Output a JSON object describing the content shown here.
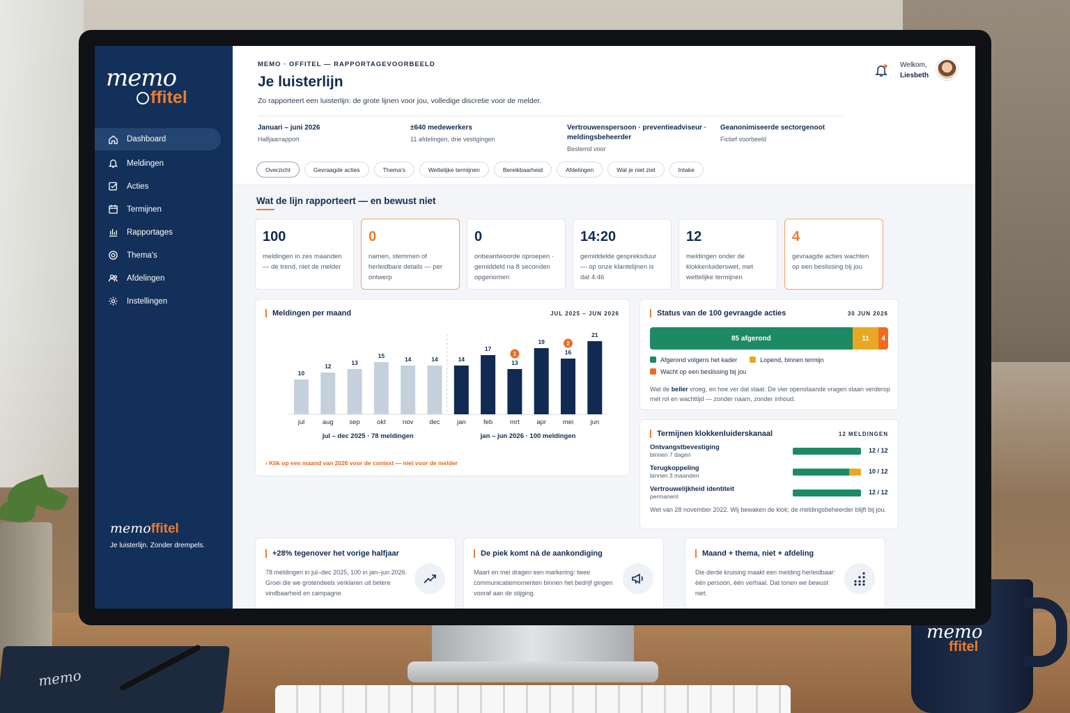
{
  "brand": {
    "logo_main": "memo",
    "logo_sub": "ffitel",
    "side_tagline": "Je luisterlijn. Zonder drempels."
  },
  "sidebar": {
    "items": [
      {
        "label": "Dashboard",
        "icon": "home-icon"
      },
      {
        "label": "Meldingen",
        "icon": "bell-icon"
      },
      {
        "label": "Acties",
        "icon": "check-square-icon"
      },
      {
        "label": "Termijnen",
        "icon": "calendar-icon"
      },
      {
        "label": "Rapportages",
        "icon": "bar-chart-icon"
      },
      {
        "label": "Thema's",
        "icon": "target-icon"
      },
      {
        "label": "Afdelingen",
        "icon": "users-icon"
      },
      {
        "label": "Instellingen",
        "icon": "gear-icon"
      }
    ]
  },
  "header": {
    "eyebrow": "MEMO · OFFITEL — RAPPORTAGEVOORBEELD",
    "title": "Je luisterlijn",
    "subtitle": "Zo rapporteert een luisterlijn: de grote lijnen voor jou, volledige discretie voor de melder.",
    "welcome_label": "Welkom,",
    "user_name": "Liesbeth",
    "meta": [
      {
        "title": "Januari – juni 2026",
        "sub": "Halfjaarrapport"
      },
      {
        "title": "±640 medewerkers",
        "sub": "11 afdelingen, drie vestigingen"
      },
      {
        "title": "Vertrouwenspersoon · preventieadviseur · meldingsbeheerder",
        "sub": "Bestemd voor"
      },
      {
        "title": "Geanonimiseerde sectorgenoot",
        "sub": "Fictief voorbeeld"
      }
    ],
    "tabs": [
      "Overzicht",
      "Gevraagde acties",
      "Thema's",
      "Wettelijke termijnen",
      "Bereikbaarheid",
      "Afdelingen",
      "Wat je niet ziet",
      "Intake"
    ]
  },
  "section": {
    "title": "Wat de lijn rapporteert — en bewust niet"
  },
  "kpis": [
    {
      "value": "100",
      "label": "meldingen in zes maanden — de trend, niet de melder"
    },
    {
      "value": "0",
      "label": "namen, stemmen of herleidbare details — per ontwerp"
    },
    {
      "value": "0",
      "label": "onbeantwoorde oproepen · gemiddeld na 8 seconden opgenomen"
    },
    {
      "value": "14:20",
      "label": "gemiddelde gespreksduur — op onze klantelijnen is dat 4:46"
    },
    {
      "value": "12",
      "label": "meldingen onder de klokkenluiderswet, met wettelijke termijnen"
    },
    {
      "value": "4",
      "label": "gevraagde acties wachten op een beslissing bij jou"
    }
  ],
  "chart_card": {
    "title": "Meldingen per maand",
    "range": "JUL 2025 – JUN 2026",
    "note": "› Klik op een maand van 2026 voor de context — niet voor de melder"
  },
  "chart_data": {
    "type": "bar",
    "title": "Meldingen per maand",
    "categories": [
      "jul",
      "aug",
      "sep",
      "okt",
      "nov",
      "dec",
      "jan",
      "feb",
      "mrt",
      "apr",
      "mei",
      "jun"
    ],
    "values": [
      10,
      12,
      13,
      15,
      14,
      14,
      14,
      17,
      13,
      19,
      16,
      21
    ],
    "groups": [
      {
        "label": "jul – dec 2025 · 78 meldingen",
        "color": "#c5d0dd",
        "from": 0,
        "to": 5
      },
      {
        "label": "jan – jun 2026 · 100 meldingen",
        "color": "#102a52",
        "from": 6,
        "to": 11
      }
    ],
    "markers": [
      {
        "index": 8,
        "label": "1"
      },
      {
        "index": 10,
        "label": "2"
      }
    ],
    "ylim": [
      0,
      22
    ]
  },
  "status_card": {
    "title": "Status van de 100 gevraagde acties",
    "date": "30 JUN 2026",
    "segments": [
      {
        "label": "85 afgerond",
        "value": 85,
        "color": "#1e8a64"
      },
      {
        "label": "11",
        "value": 11,
        "color": "#e8a823"
      },
      {
        "label": "4",
        "value": 4,
        "color": "#ef6a25"
      }
    ],
    "legend": [
      {
        "label": "Afgerond volgens het kader",
        "color": "#1e8a64"
      },
      {
        "label": "Lopend, binnen termijn",
        "color": "#e8a823"
      },
      {
        "label": "Wacht op een beslissing bij jou",
        "color": "#ef6a25"
      }
    ],
    "text_pre": "Wat de ",
    "text_bold": "beller",
    "text_post": " vroeg, en hoe ver dat staat. De vier openstaande vragen staan verderop met rol en wachttijd — zonder naam, zonder inhoud."
  },
  "deadline_card": {
    "title": "Termijnen klokkenluiderskanaal",
    "count": "12 MELDINGEN",
    "rows": [
      {
        "name": "Ontvangstbevestiging",
        "desc": "binnen 7 dagen",
        "value": "12 / 12",
        "fraction": 1.0,
        "extra": 0
      },
      {
        "name": "Terugkoppeling",
        "desc": "binnen 3 maanden",
        "value": "10 / 12",
        "fraction": 0.83,
        "extra": 0.17
      },
      {
        "name": "Vertrouwelijkheid identiteit",
        "desc": "permanent",
        "value": "12 / 12",
        "fraction": 1.0,
        "extra": 0
      }
    ],
    "note": "Wet van 28 november 2022. Wij bewaken de klok; de meldingsbeheerder blijft bij jou."
  },
  "insights": [
    {
      "title": "+28% tegenover het vorige halfjaar",
      "text": "78 meldingen in jul–dec 2025, 100 in jan–jun 2026. Groei die we grotendeels verklaren uit betere vindbaarheid en campagne.",
      "icon": "trend-up-icon"
    },
    {
      "title": "De piek komt ná de aankondiging",
      "text": "Maart en mei dragen een markering: twee communicatiemomenten binnen het bedrijf gingen vooraf aan de stijging.",
      "icon": "megaphone-icon"
    },
    {
      "title": "Maand + thema, niet + afdeling",
      "text": "Die derde kruising maakt een melding herleidbaar: één persoon, één verhaal. Dat tonen we bewust niet.",
      "icon": "grid-dots-icon"
    }
  ]
}
